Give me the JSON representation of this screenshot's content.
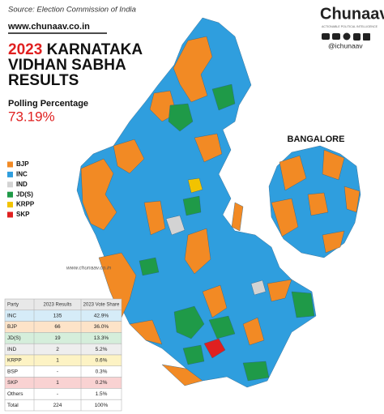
{
  "source": "Source: Election Commission of India",
  "website": "www.chunaav.co.in",
  "title": {
    "year": "2023",
    "line1": "KARNATAKA",
    "line2": "VIDHAN SABHA",
    "line3": "RESULTS"
  },
  "polling": {
    "label": "Polling Percentage",
    "value": "73.19%"
  },
  "legend": [
    {
      "name": "BJP",
      "color": "#f28a24"
    },
    {
      "name": "INC",
      "color": "#2f9ede"
    },
    {
      "name": "IND",
      "color": "#d3d3d3"
    },
    {
      "name": "JD(S)",
      "color": "#1f9a48"
    },
    {
      "name": "KRPP",
      "color": "#f2c300"
    },
    {
      "name": "SKP",
      "color": "#e02020"
    }
  ],
  "inset_label": "BANGALORE",
  "watermark": "www.chunaav.co.in",
  "brand": {
    "name": "Chunaav",
    "tagline": "ACTIONABLE POLITICAL INTELLIGENCE",
    "handle": "@ichunaav"
  },
  "table": {
    "header": [
      "Party",
      "2023 Results",
      "2023 Vote Share"
    ],
    "rows": [
      [
        "INC",
        "135",
        "42.9%"
      ],
      [
        "BJP",
        "66",
        "36.0%"
      ],
      [
        "JD(S)",
        "19",
        "13.3%"
      ],
      [
        "IND",
        "2",
        "5.2%"
      ],
      [
        "KRPP",
        "1",
        "0.6%"
      ],
      [
        "BSP",
        "-",
        "0.3%"
      ],
      [
        "SKP",
        "1",
        "0.2%"
      ],
      [
        "Others",
        "-",
        "1.5%"
      ],
      [
        "Total",
        "224",
        "100%"
      ]
    ],
    "row_colors": [
      "#d6ecf8",
      "#fde3c8",
      "#d5eedb",
      "#eeeeee",
      "#fdf3c4",
      "#ffffff",
      "#f9d2d2",
      "#ffffff",
      "#ffffff"
    ]
  }
}
